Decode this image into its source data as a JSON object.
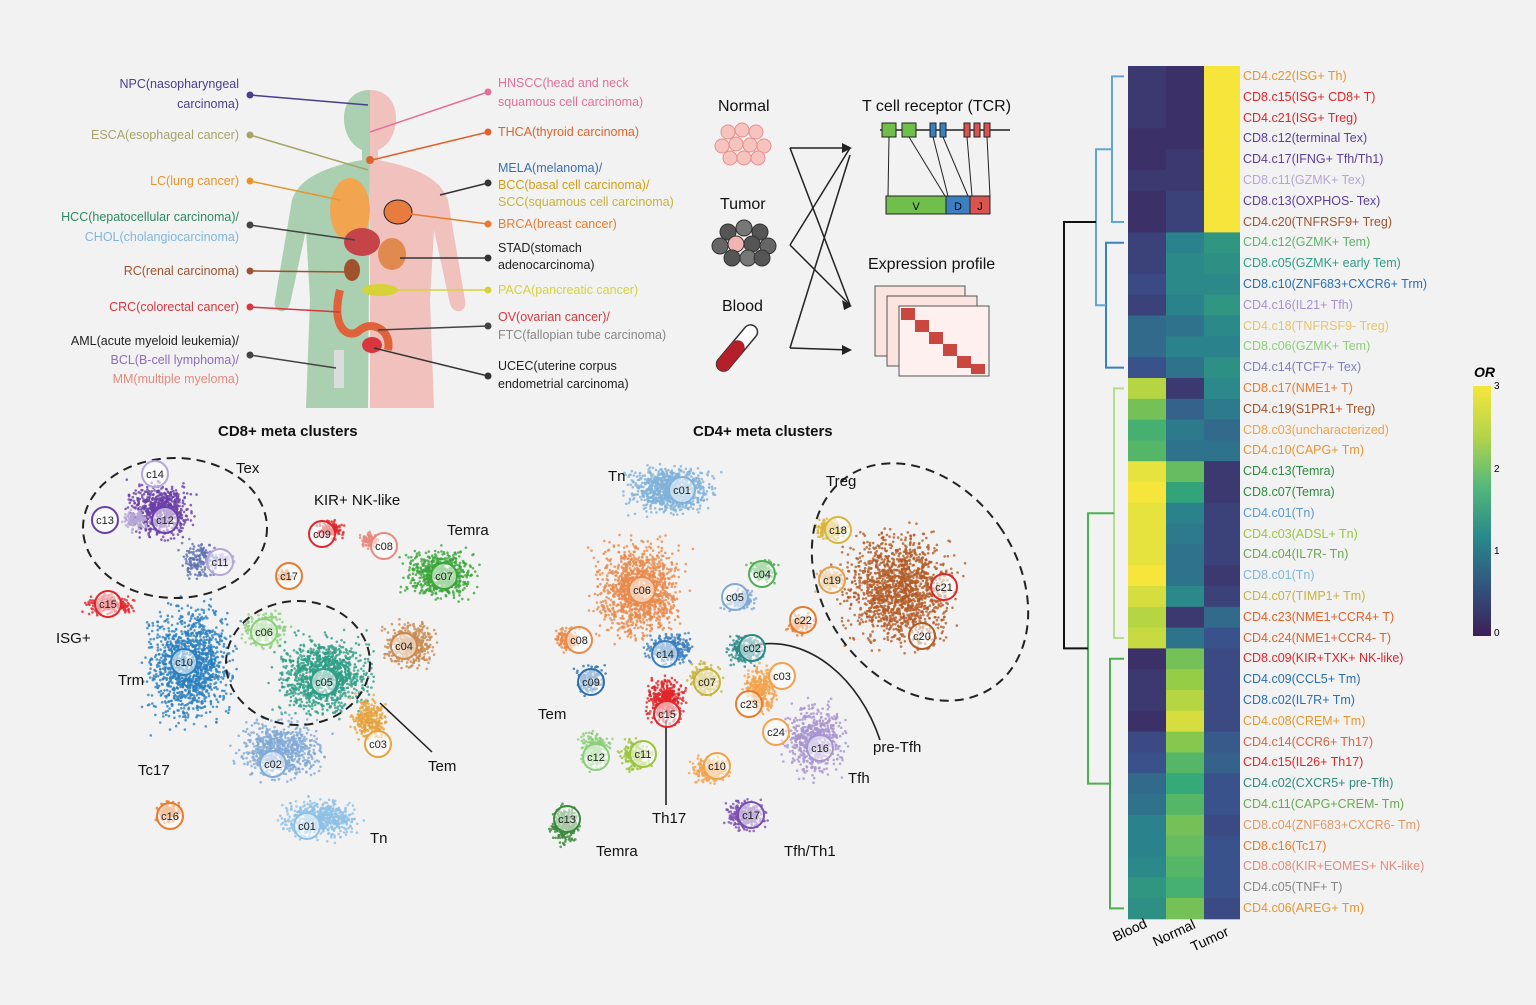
{
  "left_labels": [
    {
      "lines": [
        "NPC(nasopharyngeal",
        "carcinoma)"
      ],
      "color": "#4b3d8f"
    },
    {
      "lines": [
        "ESCA(esophageal cancer)"
      ],
      "color": "#a5a56a"
    },
    {
      "lines": [
        "LC(lung cancer)"
      ],
      "color": "#e9952d"
    },
    {
      "lines": [
        "HCC(hepatocellular carcinoma)/",
        "CHOL(cholangiocarcinoma)"
      ],
      "color": "#2d8a63",
      "color2": "#7fb7da"
    },
    {
      "lines": [
        "RC(renal carcinoma)"
      ],
      "color": "#a0522d"
    },
    {
      "lines": [
        "CRC(colorectal cancer)"
      ],
      "color": "#d9363e"
    },
    {
      "lines": [
        "AML(acute myeloid leukemia)/",
        "BCL(B-cell lymphoma)/",
        "MM(multiple myeloma)"
      ],
      "color": "#222222",
      "color2": "#8e6bbf",
      "color3": "#e58a7d"
    }
  ],
  "right_labels": [
    {
      "lines": [
        "HNSCC(head and neck",
        "squamous cell carcinoma)"
      ],
      "color": "#e56f9a"
    },
    {
      "lines": [
        "THCA(thyroid carcinoma)"
      ],
      "color": "#e0622a"
    },
    {
      "lines": [
        "MELA(melanoma)/",
        "BCC(basal cell carcinoma)/",
        "SCC(squamous cell carcinoma)"
      ],
      "color": "#3a6fb0",
      "color2": "#d4a017",
      "color3": "#c7b33a"
    },
    {
      "lines": [
        "BRCA(breast cancer)"
      ],
      "color": "#e97b2e"
    },
    {
      "lines": [
        "STAD(stomach",
        "adenocarcinoma)"
      ],
      "color": "#222222"
    },
    {
      "lines": [
        "PACA(pancreatic cancer)"
      ],
      "color": "#d6d23a"
    },
    {
      "lines": [
        "OV(ovarian cancer)/",
        "FTC(fallopian tube carcinoma)"
      ],
      "color": "#d9363e",
      "color2": "#888888"
    },
    {
      "lines": [
        "UCEC(uterine corpus",
        "endometrial carcinoma)"
      ],
      "color": "#222222"
    }
  ],
  "workflow": {
    "sources": [
      "Normal",
      "Tumor",
      "Blood"
    ],
    "tcr_title": "T cell receptor (TCR)",
    "tcr_segments": [
      "V",
      "D",
      "J"
    ],
    "expr_title": "Expression profile"
  },
  "cd8": {
    "title": "CD8+ meta clusters",
    "groups": [
      "Tex",
      "KIR+ NK-like",
      "Temra",
      "ISG+",
      "Trm",
      "Tem",
      "Tc17",
      "Tn"
    ],
    "clusters": [
      "c14",
      "c12",
      "c13",
      "c11",
      "c09",
      "c08",
      "c07",
      "c17",
      "c15",
      "c06",
      "c04",
      "c10",
      "c05",
      "c03",
      "c02",
      "c01",
      "c16"
    ]
  },
  "cd4": {
    "title": "CD4+ meta clusters",
    "groups": [
      "Tn",
      "Treg",
      "Tem",
      "Th17",
      "Temra",
      "pre-Tfh",
      "Tfh",
      "Tfh/Th1"
    ],
    "clusters": [
      "c01",
      "c18",
      "c19",
      "c21",
      "c20",
      "c06",
      "c04",
      "c05",
      "c22",
      "c08",
      "c02",
      "c14",
      "c09",
      "c07",
      "c03",
      "c15",
      "c23",
      "c24",
      "c12",
      "c11",
      "c10",
      "c16",
      "c13",
      "c17"
    ]
  },
  "heatmap": {
    "columns": [
      "Blood",
      "Normal",
      "Tumor"
    ],
    "legend_title": "OR",
    "legend_ticks": [
      "3",
      "2",
      "1",
      "0"
    ],
    "rows": [
      {
        "label": "CD4.c22(ISG+ Th)",
        "color": "#e9952d",
        "values": [
          0.3,
          0.2,
          3.0
        ]
      },
      {
        "label": "CD8.c15(ISG+ CD8+ T)",
        "color": "#e0262a",
        "values": [
          0.3,
          0.2,
          3.0
        ]
      },
      {
        "label": "CD4.c21(ISG+ Treg)",
        "color": "#e0262a",
        "values": [
          0.3,
          0.2,
          3.0
        ]
      },
      {
        "label": "CD8.c12(terminal Tex)",
        "color": "#5b3f99",
        "values": [
          0.2,
          0.2,
          3.0
        ]
      },
      {
        "label": "CD4.c17(IFNG+ Tfh/Th1)",
        "color": "#5b3f99",
        "values": [
          0.2,
          0.3,
          3.0
        ]
      },
      {
        "label": "CD8.c11(GZMK+ Tex)",
        "color": "#b4a6d6",
        "values": [
          0.3,
          0.3,
          3.0
        ]
      },
      {
        "label": "CD8.c13(OXPHOS- Tex)",
        "color": "#5b3f99",
        "values": [
          0.2,
          0.4,
          3.0
        ]
      },
      {
        "label": "CD4.c20(TNFRSF9+ Treg)",
        "color": "#a0522d",
        "values": [
          0.2,
          0.4,
          3.0
        ]
      },
      {
        "label": "CD4.c12(GZMK+ Tem)",
        "color": "#5db36a",
        "values": [
          0.4,
          1.2,
          1.5
        ]
      },
      {
        "label": "CD8.c05(GZMK+ early Tem)",
        "color": "#2e9e86",
        "values": [
          0.4,
          1.3,
          1.4
        ]
      },
      {
        "label": "CD8.c10(ZNF683+CXCR6+ Trm)",
        "color": "#2a6fb0",
        "values": [
          0.5,
          1.3,
          1.3
        ]
      },
      {
        "label": "CD4.c16(IL21+ Tfh)",
        "color": "#a793cf",
        "values": [
          0.4,
          1.2,
          1.5
        ]
      },
      {
        "label": "CD4.c18(TNFRSF9- Treg)",
        "color": "#e8c46a",
        "values": [
          0.9,
          1.0,
          1.3
        ]
      },
      {
        "label": "CD8.c06(GZMK+ Tem)",
        "color": "#8ccf7a",
        "values": [
          0.9,
          1.2,
          1.2
        ]
      },
      {
        "label": "CD4.c14(TCF7+ Tex)",
        "color": "#7f7fbf",
        "values": [
          0.6,
          1.0,
          1.4
        ]
      },
      {
        "label": "CD8.c17(NME1+ T)",
        "color": "#e97b2e",
        "values": [
          2.6,
          0.3,
          1.3
        ]
      },
      {
        "label": "CD4.c19(S1PR1+ Treg)",
        "color": "#a0522d",
        "values": [
          2.2,
          0.8,
          1.1
        ]
      },
      {
        "label": "CD8.c03(uncharacterized)",
        "color": "#f2a24b",
        "values": [
          1.9,
          1.1,
          0.9
        ]
      },
      {
        "label": "CD4.c10(CAPG+ Tm)",
        "color": "#e9952d",
        "values": [
          2.0,
          1.0,
          1.0
        ]
      },
      {
        "label": "CD4.c13(Temra)",
        "color": "#2e8b3e",
        "values": [
          2.9,
          2.1,
          0.3
        ]
      },
      {
        "label": "CD8.c07(Temra)",
        "color": "#2e8b3e",
        "values": [
          3.0,
          1.7,
          0.3
        ]
      },
      {
        "label": "CD4.c01(Tn)",
        "color": "#5b9bd5",
        "values": [
          2.9,
          1.2,
          0.4
        ]
      },
      {
        "label": "CD4.c03(ADSL+ Tn)",
        "color": "#9bc53d",
        "values": [
          2.9,
          1.1,
          0.4
        ]
      },
      {
        "label": "CD4.c04(IL7R- Tn)",
        "color": "#6aa84f",
        "values": [
          2.9,
          1.0,
          0.4
        ]
      },
      {
        "label": "CD8.c01(Tn)",
        "color": "#7fb7da",
        "values": [
          3.0,
          1.0,
          0.3
        ]
      },
      {
        "label": "CD4.c07(TIMP1+ Tm)",
        "color": "#c7b33a",
        "values": [
          2.8,
          1.3,
          0.4
        ]
      },
      {
        "label": "CD4.c23(NME1+CCR4+ T)",
        "color": "#e0622a",
        "values": [
          2.6,
          0.3,
          0.9
        ]
      },
      {
        "label": "CD4.c24(NME1+CCR4- T)",
        "color": "#e0622a",
        "values": [
          2.7,
          1.0,
          0.6
        ]
      },
      {
        "label": "CD8.c09(KIR+TXK+ NK-like)",
        "color": "#e0262a",
        "values": [
          0.2,
          2.2,
          0.5
        ]
      },
      {
        "label": "CD4.c09(CCL5+ Tm)",
        "color": "#2a6fb0",
        "values": [
          0.3,
          2.4,
          0.5
        ]
      },
      {
        "label": "CD8.c02(IL7R+ Tm)",
        "color": "#2a6fb0",
        "values": [
          0.3,
          2.6,
          0.5
        ]
      },
      {
        "label": "CD4.c08(CREM+ Tm)",
        "color": "#e9952d",
        "values": [
          0.2,
          2.8,
          0.5
        ]
      },
      {
        "label": "CD4.c14(CCR6+ Th17)",
        "color": "#e06040",
        "values": [
          0.5,
          2.3,
          0.7
        ]
      },
      {
        "label": "CD4.c15(IL26+ Th17)",
        "color": "#e0262a",
        "values": [
          0.6,
          2.0,
          0.8
        ]
      },
      {
        "label": "CD4.c02(CXCR5+ pre-Tfh)",
        "color": "#2e8b7a",
        "values": [
          0.9,
          1.8,
          0.6
        ]
      },
      {
        "label": "CD4.c11(CAPG+CREM- Tm)",
        "color": "#6aa84f",
        "values": [
          1.0,
          2.0,
          0.6
        ]
      },
      {
        "label": "CD8.c04(ZNF683+CXCR6- Tm)",
        "color": "#e09a6a",
        "values": [
          1.2,
          2.2,
          0.5
        ]
      },
      {
        "label": "CD8.c16(Tc17)",
        "color": "#e97b2e",
        "values": [
          1.2,
          2.1,
          0.6
        ]
      },
      {
        "label": "CD8.c08(KIR+EOMES+ NK-like)",
        "color": "#e58a7d",
        "values": [
          1.3,
          2.0,
          0.6
        ]
      },
      {
        "label": "CD4.c05(TNF+ T)",
        "color": "#888888",
        "values": [
          1.5,
          1.9,
          0.6
        ]
      },
      {
        "label": "CD4.c06(AREG+ Tm)",
        "color": "#e9952d",
        "values": [
          1.4,
          2.2,
          0.5
        ]
      }
    ]
  }
}
